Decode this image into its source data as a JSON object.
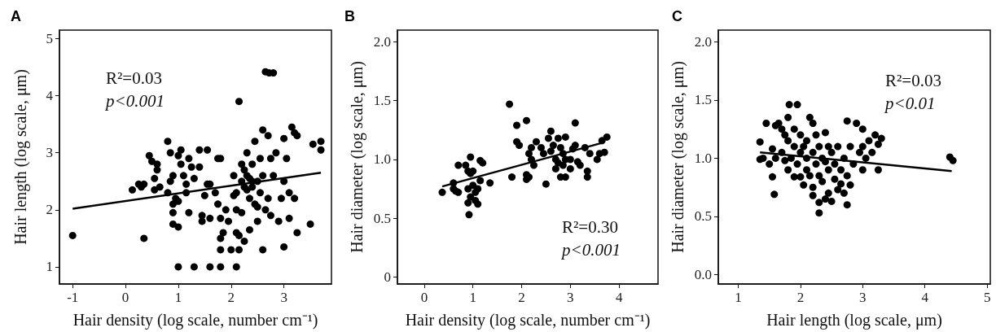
{
  "chart_data": [
    {
      "type": "scatter",
      "title": "A",
      "xlabel": "Hair density (log scale, number cm⁻¹)",
      "ylabel": "Hair length (log scale, μm)",
      "annotations": [
        "R²=0.03",
        "p<0.001"
      ],
      "xlim": [
        -1.25,
        3.9
      ],
      "ylim": [
        0.7,
        5.15
      ],
      "xticks": [
        -1,
        0,
        1,
        2,
        3
      ],
      "yticks": [
        1,
        2,
        3,
        4,
        5
      ],
      "grid": false,
      "marker": "circle",
      "series": [
        {
          "color": "#000000",
          "x": [
            -1.0,
            0.35,
            0.13,
            0.25,
            0.3,
            0.35,
            0.45,
            0.5,
            0.55,
            0.6,
            0.6,
            0.55,
            0.65,
            0.8,
            0.85,
            0.85,
            0.9,
            0.8,
            0.9,
            0.95,
            0.9,
            0.9,
            1.0,
            1.0,
            1.05,
            1.05,
            1.1,
            1.15,
            1.2,
            1.25,
            1.3,
            1.2,
            1.0,
            1.15,
            1.4,
            1.4,
            1.45,
            1.45,
            1.5,
            1.55,
            1.55,
            1.6,
            1.6,
            1.7,
            1.75,
            1.8,
            1.75,
            1.8,
            1.85,
            1.8,
            1.8,
            1.9,
            1.95,
            2.0,
            2.05,
            2.1,
            2.1,
            2.1,
            2.15,
            2.15,
            2.2,
            2.2,
            2.2,
            2.25,
            2.25,
            2.3,
            2.3,
            2.35,
            2.35,
            2.4,
            2.4,
            2.45,
            2.45,
            2.5,
            2.5,
            2.55,
            2.55,
            2.6,
            2.6,
            2.6,
            2.65,
            2.7,
            2.7,
            2.75,
            2.75,
            2.8,
            2.85,
            2.9,
            2.95,
            3.0,
            3.0,
            3.0,
            3.05,
            3.1,
            3.1,
            3.15,
            3.2,
            3.2,
            3.25,
            3.25,
            3.5,
            3.55,
            3.7,
            3.7,
            2.15,
            2.65,
            2.72,
            2.8,
            1.0,
            1.3,
            1.6,
            1.8,
            2.1,
            2.05,
            2.3,
            2.4,
            2.25,
            2.35,
            2.5
          ],
          "values": [
            1.55,
            1.5,
            2.35,
            2.45,
            2.4,
            2.45,
            2.95,
            2.85,
            2.55,
            2.8,
            2.7,
            2.35,
            2.4,
            3.2,
            3.0,
            2.5,
            2.6,
            2.3,
            2.1,
            2.2,
            1.95,
            1.75,
            1.7,
            2.95,
            3.05,
            2.8,
            2.6,
            2.45,
            2.9,
            2.75,
            2.55,
            1.95,
            2.15,
            2.3,
            3.05,
            2.75,
            1.9,
            1.8,
            2.25,
            3.05,
            2.45,
            2.45,
            1.85,
            2.3,
            2.9,
            2.9,
            2.1,
            1.85,
            1.6,
            1.5,
            1.3,
            2.0,
            1.8,
            1.3,
            2.6,
            2.3,
            2.0,
            1.6,
            1.3,
            1.55,
            2.8,
            2.5,
            1.95,
            2.4,
            1.45,
            2.6,
            3.0,
            2.2,
            1.65,
            2.8,
            2.4,
            2.1,
            3.2,
            2.5,
            1.8,
            2.9,
            2.3,
            3.4,
            2.6,
            1.3,
            2.0,
            3.3,
            2.2,
            2.9,
            1.9,
            2.6,
            3.0,
            1.8,
            2.2,
            2.5,
            3.25,
            1.35,
            2.9,
            2.3,
            1.85,
            3.45,
            3.35,
            2.2,
            3.3,
            1.6,
            1.75,
            3.15,
            3.2,
            3.05,
            3.9,
            4.42,
            4.4,
            4.4,
            1.0,
            1.0,
            1.0,
            1.0,
            1.0,
            2.25,
            2.35,
            2.5,
            2.7,
            2.55,
            2.05
          ]
        },
        {
          "type": "line",
          "marker": "none",
          "color": "#000000",
          "x": [
            -1.0,
            3.7
          ],
          "values": [
            2.02,
            2.65
          ]
        }
      ]
    },
    {
      "type": "scatter",
      "title": "B",
      "xlabel": "Hair density (log scale, number cm⁻¹)",
      "ylabel": "Hair diameter (log scale, μm)",
      "annotations": [
        "R²=0.30",
        "p<0.001"
      ],
      "xlim": [
        -0.55,
        4.8
      ],
      "ylim": [
        -0.06,
        2.1
      ],
      "xticks": [
        0,
        1,
        2,
        3,
        4
      ],
      "yticks": [
        0,
        {
          "value": 0.5,
          "label": "0.5"
        },
        {
          "value": 1,
          "label": "1.0"
        },
        {
          "value": 1.5,
          "label": "1.5"
        },
        {
          "value": 2,
          "label": "2.0"
        }
      ],
      "grid": false,
      "marker": "circle",
      "series": [
        {
          "color": "#000000",
          "x": [
            0.37,
            0.6,
            0.6,
            0.65,
            0.7,
            0.7,
            0.85,
            0.9,
            0.9,
            0.95,
            0.95,
            0.95,
            0.9,
            0.92,
            1.0,
            1.0,
            1.05,
            1.05,
            1.1,
            1.1,
            1.15,
            1.15,
            1.2,
            1.35,
            1.8,
            1.75,
            1.9,
            1.9,
            1.95,
            2.1,
            2.1,
            2.1,
            2.15,
            2.15,
            2.2,
            2.2,
            2.25,
            2.3,
            2.4,
            2.45,
            2.5,
            2.55,
            2.6,
            2.6,
            2.65,
            2.7,
            2.7,
            2.75,
            2.75,
            2.8,
            2.8,
            2.85,
            2.85,
            2.9,
            2.9,
            2.9,
            3.0,
            3.0,
            3.05,
            3.1,
            3.1,
            3.15,
            3.2,
            3.3,
            3.35,
            3.35,
            3.4,
            3.55,
            3.6,
            3.65,
            3.7,
            3.75
          ],
          "values": [
            0.72,
            0.8,
            0.75,
            0.73,
            0.72,
            0.95,
            0.95,
            0.9,
            0.75,
            0.88,
            1.02,
            0.68,
            0.63,
            0.53,
            0.9,
            0.78,
            0.72,
            0.65,
            0.62,
            0.75,
            0.82,
            0.99,
            0.97,
            0.8,
            0.85,
            1.47,
            1.29,
            1.15,
            1.12,
            1.33,
            0.87,
            0.83,
            0.85,
            1.05,
            1.1,
            1.0,
            0.95,
            1.15,
            1.1,
            1.05,
            0.79,
            1.18,
            1.24,
            1.07,
            1.12,
            1.0,
            0.92,
            1.18,
            0.97,
            1.1,
            0.85,
            1.05,
            0.95,
            1.19,
            1.0,
            0.85,
            1.0,
            0.92,
            1.09,
            1.31,
            1.12,
            0.98,
            0.95,
            1.1,
            0.9,
            0.85,
            1.05,
            1.0,
            1.05,
            1.16,
            1.06,
            1.19
          ]
        },
        {
          "type": "line",
          "marker": "none",
          "color": "#000000",
          "x": [
            0.37,
            3.65
          ],
          "values": [
            0.77,
            1.14
          ]
        }
      ]
    },
    {
      "type": "scatter",
      "title": "C",
      "xlabel": "Hair length (log scale, μm)",
      "ylabel": "Hair diameter (log scale, μm)",
      "annotations": [
        "R²=0.03",
        "p<0.01"
      ],
      "xlim": [
        0.68,
        5.05
      ],
      "ylim": [
        -0.08,
        2.1
      ],
      "xticks": [
        1,
        2,
        3,
        4,
        5
      ],
      "yticks": [
        {
          "value": 0,
          "label": "0.0"
        },
        {
          "value": 0.5,
          "label": "0.5"
        },
        {
          "value": 1,
          "label": "1.0"
        },
        {
          "value": 1.5,
          "label": "1.5"
        },
        {
          "value": 2,
          "label": "2.0"
        }
      ],
      "grid": false,
      "marker": "circle",
      "series": [
        {
          "color": "#000000",
          "x": [
            1.35,
            1.35,
            1.4,
            1.45,
            1.5,
            1.55,
            1.55,
            1.58,
            1.6,
            1.6,
            1.65,
            1.7,
            1.7,
            1.75,
            1.75,
            1.8,
            1.8,
            1.82,
            1.8,
            1.85,
            1.9,
            1.9,
            1.9,
            1.95,
            1.95,
            2.0,
            2.0,
            2.0,
            2.05,
            2.05,
            2.1,
            2.1,
            2.1,
            2.15,
            2.15,
            2.2,
            2.2,
            2.2,
            2.2,
            2.25,
            2.25,
            2.3,
            2.3,
            2.3,
            2.3,
            2.35,
            2.35,
            2.4,
            2.4,
            2.4,
            2.45,
            2.45,
            2.45,
            2.5,
            2.5,
            2.55,
            2.55,
            2.6,
            2.6,
            2.65,
            2.65,
            2.7,
            2.7,
            2.75,
            2.75,
            2.75,
            2.8,
            2.8,
            2.85,
            2.9,
            2.95,
            3.0,
            3.0,
            3.0,
            3.05,
            3.1,
            3.15,
            3.2,
            3.25,
            3.3,
            3.25,
            4.4,
            4.45
          ],
          "values": [
            1.14,
            0.99,
            1.0,
            1.3,
            0.95,
            1.08,
            0.84,
            0.69,
            1.28,
            1.0,
            1.3,
            1.25,
            1.05,
            0.98,
            1.2,
            1.35,
            1.15,
            1.46,
            0.9,
            1.0,
            1.25,
            1.1,
            0.84,
            1.46,
            0.95,
            1.2,
            1.05,
            0.84,
            1.1,
            0.77,
            1.15,
            1.0,
            0.9,
            1.35,
            0.85,
            1.3,
            1.05,
            0.75,
            0.68,
            1.2,
            0.95,
            1.1,
            0.85,
            0.53,
            0.62,
            1.0,
            0.8,
            1.22,
            0.97,
            0.65,
            1.1,
            0.9,
            0.7,
            1.05,
            0.63,
            0.95,
            0.82,
            1.1,
            0.73,
            0.9,
            0.78,
            1.0,
            0.7,
            1.32,
            0.6,
            0.85,
            1.1,
            0.77,
            0.95,
            1.3,
            1.05,
            1.25,
            1.1,
            0.9,
            1.0,
            1.15,
            1.05,
            1.2,
            1.12,
            1.17,
            0.9,
            1.01,
            0.98
          ]
        },
        {
          "type": "line",
          "marker": "none",
          "color": "#000000",
          "x": [
            1.35,
            4.43
          ],
          "values": [
            1.05,
            0.89
          ]
        }
      ]
    }
  ]
}
